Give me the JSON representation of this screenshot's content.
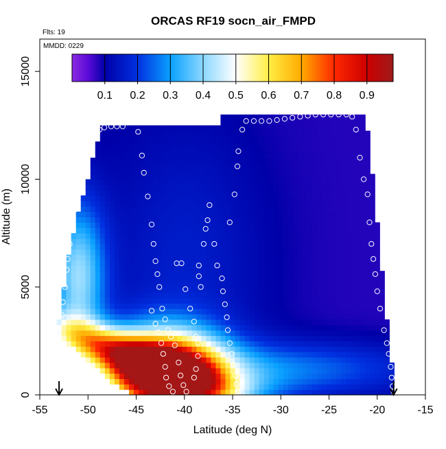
{
  "chart_data": {
    "type": "heatmap",
    "title": "ORCAS RF19 socn_air_FMPD",
    "flights_note": "Flts: 19",
    "date_note": "MMDD: 0229",
    "xlabel": "Latitude (deg N)",
    "ylabel": "Altitude (m)",
    "xlim": [
      -55,
      -15
    ],
    "ylim": [
      0,
      16500
    ],
    "x_ticks": [
      -55,
      -50,
      -45,
      -40,
      -35,
      -30,
      -25,
      -20,
      -15
    ],
    "y_ticks": [
      0,
      5000,
      10000,
      15000
    ],
    "colorbar": {
      "range": [
        0,
        0.98
      ],
      "ticks": [
        0.1,
        0.2,
        0.3,
        0.4,
        0.5,
        0.6,
        0.7,
        0.8,
        0.9
      ],
      "stops": [
        {
          "v": 0.0,
          "c": "#8a2be2"
        },
        {
          "v": 0.05,
          "c": "#5a0ad8"
        },
        {
          "v": 0.1,
          "c": "#0000a8"
        },
        {
          "v": 0.2,
          "c": "#0030e0"
        },
        {
          "v": 0.3,
          "c": "#0aa0ff"
        },
        {
          "v": 0.4,
          "c": "#8cd8ff"
        },
        {
          "v": 0.5,
          "c": "#ffffff"
        },
        {
          "v": 0.6,
          "c": "#ffee44"
        },
        {
          "v": 0.7,
          "c": "#ffaa00"
        },
        {
          "v": 0.8,
          "c": "#ff2800"
        },
        {
          "v": 0.9,
          "c": "#cc0000"
        },
        {
          "v": 0.98,
          "c": "#9e1a1a"
        }
      ]
    },
    "flight_track_points": [
      [
        -53.0,
        3100
      ],
      [
        -52.7,
        3700
      ],
      [
        -52.6,
        4300
      ],
      [
        -52.4,
        5000
      ],
      [
        -52.2,
        5800
      ],
      [
        -52.1,
        6300
      ],
      [
        -51.9,
        7000
      ],
      [
        -51.6,
        8000
      ],
      [
        -51.3,
        8600
      ],
      [
        -51.0,
        9300
      ],
      [
        -50.6,
        10000
      ],
      [
        -50.3,
        10700
      ],
      [
        -49.9,
        11300
      ],
      [
        -49.4,
        11900
      ],
      [
        -48.8,
        12300
      ],
      [
        -48.3,
        12400
      ],
      [
        -47.6,
        12450
      ],
      [
        -47.0,
        12450
      ],
      [
        -46.4,
        12450
      ],
      [
        -44.8,
        12200
      ],
      [
        -44.4,
        11100
      ],
      [
        -44.2,
        10300
      ],
      [
        -43.8,
        9200
      ],
      [
        -43.4,
        7900
      ],
      [
        -43.2,
        7000
      ],
      [
        -43.0,
        6200
      ],
      [
        -42.8,
        5600
      ],
      [
        -42.6,
        5000
      ],
      [
        -42.3,
        4000
      ],
      [
        -42.0,
        3500
      ],
      [
        -41.7,
        3000
      ],
      [
        -41.4,
        2700
      ],
      [
        -41.0,
        2300
      ],
      [
        -40.6,
        1500
      ],
      [
        -40.4,
        900
      ],
      [
        -40.1,
        450
      ],
      [
        -39.8,
        150
      ],
      [
        -43.4,
        3900
      ],
      [
        -43.0,
        3300
      ],
      [
        -42.7,
        2900
      ],
      [
        -42.4,
        2400
      ],
      [
        -42.2,
        1900
      ],
      [
        -42.0,
        1300
      ],
      [
        -41.9,
        800
      ],
      [
        -41.6,
        400
      ],
      [
        -41.2,
        150
      ],
      [
        -40.8,
        6100
      ],
      [
        -40.3,
        6100
      ],
      [
        -39.9,
        4900
      ],
      [
        -39.4,
        4000
      ],
      [
        -39.0,
        3400
      ],
      [
        -38.8,
        2700
      ],
      [
        -38.6,
        2400
      ],
      [
        -38.6,
        1800
      ],
      [
        -38.8,
        1200
      ],
      [
        -39.0,
        800
      ],
      [
        -38.5,
        6000
      ],
      [
        -38.5,
        5500
      ],
      [
        -38.3,
        5000
      ],
      [
        -38.0,
        7000
      ],
      [
        -37.8,
        7700
      ],
      [
        -37.6,
        8100
      ],
      [
        -37.4,
        8800
      ],
      [
        -36.9,
        7000
      ],
      [
        -36.6,
        6000
      ],
      [
        -36.1,
        5400
      ],
      [
        -36.0,
        4800
      ],
      [
        -35.8,
        4200
      ],
      [
        -35.6,
        3600
      ],
      [
        -35.5,
        3000
      ],
      [
        -35.3,
        2400
      ],
      [
        -35.1,
        1900
      ],
      [
        -34.9,
        1400
      ],
      [
        -34.7,
        900
      ],
      [
        -34.6,
        500
      ],
      [
        -34.4,
        150
      ],
      [
        -35.3,
        8000
      ],
      [
        -34.8,
        9300
      ],
      [
        -34.5,
        10600
      ],
      [
        -34.4,
        11300
      ],
      [
        -34.0,
        12300
      ],
      [
        -33.6,
        12700
      ],
      [
        -32.8,
        12700
      ],
      [
        -32.0,
        12700
      ],
      [
        -31.2,
        12700
      ],
      [
        -30.4,
        12750
      ],
      [
        -29.6,
        12800
      ],
      [
        -28.8,
        12850
      ],
      [
        -28.0,
        12900
      ],
      [
        -27.2,
        12950
      ],
      [
        -26.4,
        13000
      ],
      [
        -25.6,
        13000
      ],
      [
        -24.8,
        13000
      ],
      [
        -24.0,
        13000
      ],
      [
        -23.2,
        13000
      ],
      [
        -22.6,
        12900
      ],
      [
        -22.2,
        12300
      ],
      [
        -21.8,
        11000
      ],
      [
        -21.4,
        10000
      ],
      [
        -21.0,
        9300
      ],
      [
        -20.8,
        8000
      ],
      [
        -20.6,
        7000
      ],
      [
        -20.4,
        6300
      ],
      [
        -20.2,
        5600
      ],
      [
        -20.0,
        4800
      ],
      [
        -19.7,
        4000
      ],
      [
        -19.3,
        3000
      ],
      [
        -19.0,
        2400
      ],
      [
        -18.8,
        1900
      ],
      [
        -18.6,
        1300
      ],
      [
        -18.5,
        800
      ],
      [
        -18.4,
        400
      ],
      [
        -18.3,
        150
      ]
    ],
    "markers": [
      {
        "lat": -53.0,
        "label": "↓"
      },
      {
        "lat": -18.3,
        "label": "↓"
      }
    ]
  }
}
